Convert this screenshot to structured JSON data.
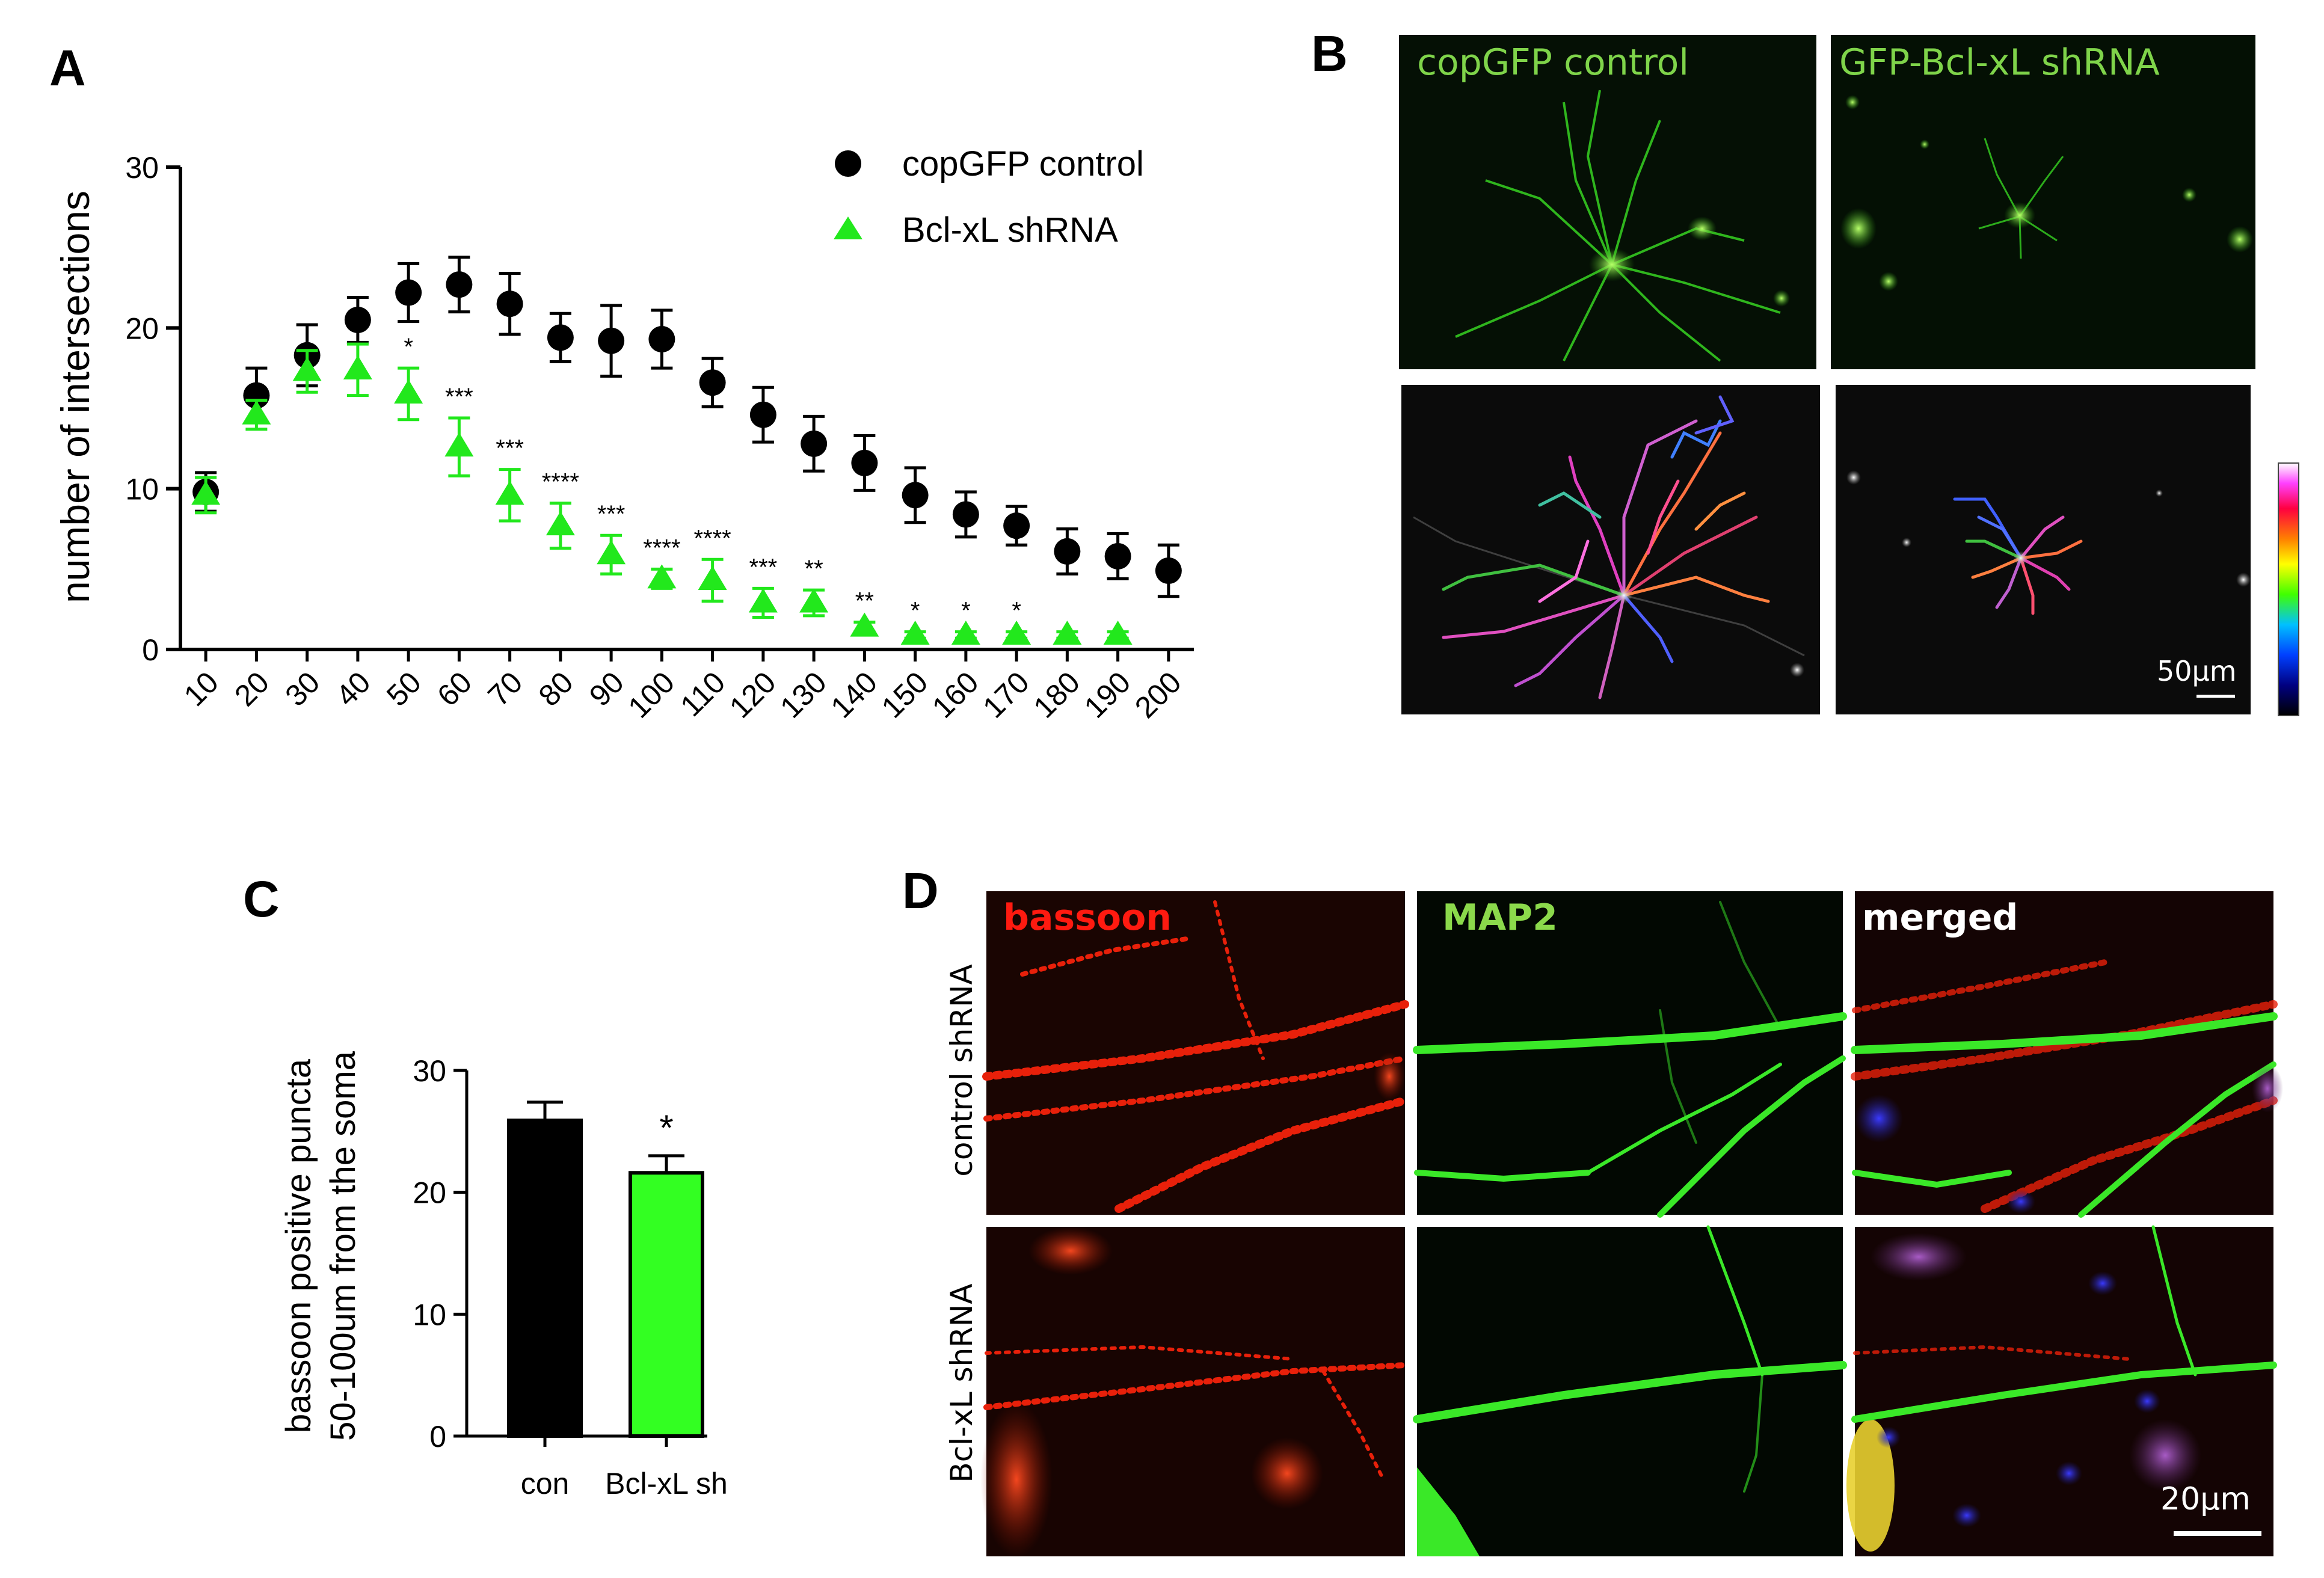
{
  "panels": {
    "a": "A",
    "b": "B",
    "c": "C",
    "d": "D"
  },
  "colors": {
    "control": "#000000",
    "shrna": "#22e81c",
    "bar_shrna": "#33ff22",
    "micro_green": "#8bd94b",
    "micro_red": "#ff2a10"
  },
  "chart_data": [
    {
      "type": "scatter",
      "panel": "A",
      "ylabel": "number of intersections",
      "xlabel": "",
      "x": [
        10,
        20,
        30,
        40,
        50,
        60,
        70,
        80,
        90,
        100,
        110,
        120,
        130,
        140,
        150,
        160,
        170,
        180,
        190,
        200
      ],
      "xticks": [
        "10",
        "20",
        "30",
        "40",
        "50",
        "60",
        "70",
        "80",
        "90",
        "100",
        "110",
        "120",
        "130",
        "140",
        "150",
        "160",
        "170",
        "180",
        "190",
        "200"
      ],
      "ylim": [
        0,
        30
      ],
      "yticks": [
        "0",
        "10",
        "20",
        "30"
      ],
      "legend_position": "top-right",
      "series": [
        {
          "name": "copGFP control",
          "marker": "circle",
          "color": "#000000",
          "x": [
            10,
            20,
            30,
            40,
            50,
            60,
            70,
            80,
            90,
            100,
            110,
            120,
            130,
            140,
            150,
            160,
            170,
            180,
            190,
            200
          ],
          "values": [
            9.8,
            15.8,
            18.3,
            20.5,
            22.2,
            22.7,
            21.5,
            19.4,
            19.2,
            19.3,
            16.6,
            14.6,
            12.8,
            11.6,
            9.6,
            8.4,
            7.7,
            6.1,
            5.8,
            4.9
          ],
          "errors": [
            1.2,
            1.7,
            1.9,
            1.4,
            1.8,
            1.7,
            1.9,
            1.5,
            2.2,
            1.8,
            1.5,
            1.7,
            1.7,
            1.7,
            1.7,
            1.4,
            1.2,
            1.4,
            1.4,
            1.6
          ]
        },
        {
          "name": "Bcl-xL shRNA",
          "marker": "triangle",
          "color": "#22e81c",
          "x": [
            10,
            20,
            30,
            40,
            50,
            60,
            70,
            80,
            90,
            100,
            110,
            120,
            130,
            140,
            150,
            160,
            170,
            180,
            190
          ],
          "values": [
            9.6,
            14.6,
            17.3,
            17.4,
            15.9,
            12.6,
            9.6,
            7.7,
            5.9,
            4.4,
            4.3,
            2.9,
            2.9,
            1.4,
            0.9,
            0.9,
            0.9,
            0.9,
            0.9
          ],
          "errors": [
            1.1,
            0.9,
            1.3,
            1.6,
            1.6,
            1.8,
            1.6,
            1.4,
            1.2,
            0.6,
            1.3,
            0.9,
            0.8,
            0.3,
            0.2,
            0.2,
            0.2,
            0.2,
            0.2
          ]
        }
      ],
      "annotations": [
        {
          "x": 50,
          "text": "*"
        },
        {
          "x": 60,
          "text": "***"
        },
        {
          "x": 70,
          "text": "***"
        },
        {
          "x": 80,
          "text": "****"
        },
        {
          "x": 90,
          "text": "***"
        },
        {
          "x": 100,
          "text": "****"
        },
        {
          "x": 110,
          "text": "****"
        },
        {
          "x": 120,
          "text": "***"
        },
        {
          "x": 130,
          "text": "**"
        },
        {
          "x": 140,
          "text": "**"
        },
        {
          "x": 150,
          "text": "*"
        },
        {
          "x": 160,
          "text": "*"
        },
        {
          "x": 170,
          "text": "*"
        }
      ]
    },
    {
      "type": "bar",
      "panel": "C",
      "categories": [
        "con",
        "Bcl-xL sh"
      ],
      "values": [
        25.9,
        21.6
      ],
      "errors": [
        1.5,
        1.4
      ],
      "colors": [
        "#000000",
        "#33ff22"
      ],
      "ylabel_line1": "bassoon positive puncta",
      "ylabel_line2": "50-100um from the soma",
      "ylim": [
        0,
        30
      ],
      "yticks": [
        "0",
        "10",
        "20",
        "30"
      ],
      "annotations": [
        {
          "category": "Bcl-xL sh",
          "text": "*"
        }
      ]
    }
  ],
  "panel_b": {
    "label_left": "copGFP control",
    "label_right": "GFP-Bcl-xL shRNA",
    "scale_bar": "50µm"
  },
  "panel_d": {
    "columns": [
      "bassoon",
      "MAP2",
      "merged"
    ],
    "rows": [
      "control shRNA",
      "Bcl-xL shRNA"
    ],
    "scale_bar": "20µm"
  }
}
